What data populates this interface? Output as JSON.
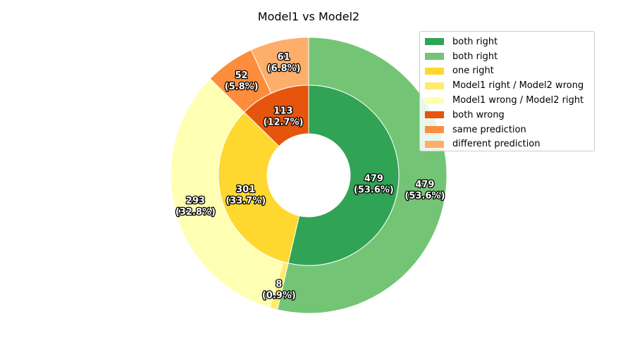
{
  "chart_data": {
    "type": "pie",
    "title": "Model1 vs Model2",
    "inner_ring": {
      "slices": [
        {
          "name": "both right",
          "value": 479,
          "label": "479",
          "pct_label": "(53.6%)",
          "color": "#31a354"
        },
        {
          "name": "one right",
          "value": 301,
          "label": "301",
          "pct_label": "(33.7%)",
          "color": "#fed82f"
        },
        {
          "name": "both wrong",
          "value": 113,
          "label": "113",
          "pct_label": "(12.7%)",
          "color": "#e6550d"
        }
      ]
    },
    "outer_ring": {
      "slices": [
        {
          "name": "both right",
          "value": 479,
          "label": "479",
          "pct_label": "(53.6%)",
          "color": "#74c476"
        },
        {
          "name": "Model1 right / Model2 wrong",
          "value": 8,
          "label": "8",
          "pct_label": "(0.9%)",
          "color": "#ffeb6e"
        },
        {
          "name": "Model1 wrong / Model2 right",
          "value": 293,
          "label": "293",
          "pct_label": "(32.8%)",
          "color": "#ffffb3"
        },
        {
          "name": "same prediction",
          "value": 52,
          "label": "52",
          "pct_label": "(5.8%)",
          "color": "#fd8d3c"
        },
        {
          "name": "different prediction",
          "value": 61,
          "label": "61",
          "pct_label": "(6.8%)",
          "color": "#fdae6b"
        }
      ]
    },
    "start_angle_deg": 90,
    "direction": "clockwise",
    "legend": {
      "placement": "top-right",
      "entries": [
        {
          "label": "both right",
          "color": "#31a354"
        },
        {
          "label": "both right",
          "color": "#74c476"
        },
        {
          "label": "one right",
          "color": "#fed82f"
        },
        {
          "label": "Model1 right / Model2 wrong",
          "color": "#ffeb6e"
        },
        {
          "label": "Model1 wrong / Model2 right",
          "color": "#ffffb3"
        },
        {
          "label": "both wrong",
          "color": "#e6550d"
        },
        {
          "label": "same prediction",
          "color": "#fd8d3c"
        },
        {
          "label": "different prediction",
          "color": "#fdae6b"
        }
      ]
    }
  }
}
